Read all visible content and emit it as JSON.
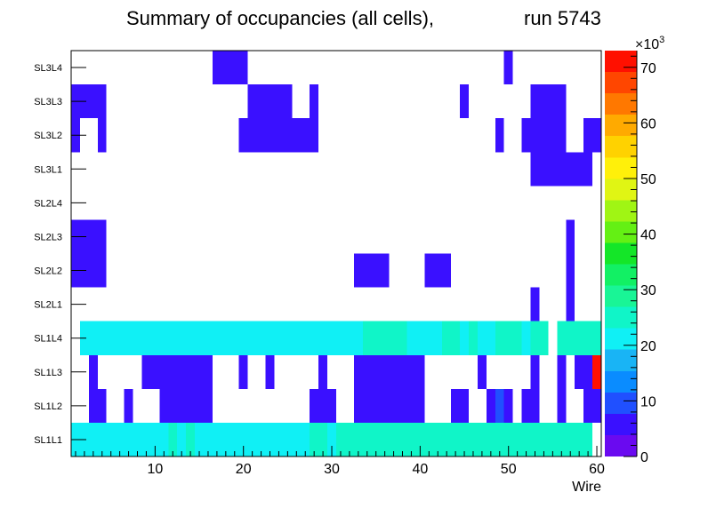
{
  "chart_data": {
    "type": "heatmap",
    "title": "Summary of occupancies (all cells),",
    "run_label": "run 5743",
    "xlabel": "Wire",
    "x_range": [
      0.5,
      60.5
    ],
    "x_ticks": [
      10,
      20,
      30,
      40,
      50,
      60
    ],
    "y_categories": [
      "SL1L1",
      "SL1L2",
      "SL1L3",
      "SL1L4",
      "SL2L1",
      "SL2L2",
      "SL2L3",
      "SL2L4",
      "SL3L1",
      "SL3L2",
      "SL3L3",
      "SL3L4"
    ],
    "z_range": [
      0,
      73000
    ],
    "z_ticks": [
      0,
      10,
      20,
      30,
      40,
      50,
      60,
      70
    ],
    "z_exponent_label": "×10",
    "z_exponent": "3",
    "palette": [
      "#6a0af0",
      "#3a10ff",
      "#2050ff",
      "#0a8cff",
      "#19b4f5",
      "#10f0f5",
      "#10f5c8",
      "#19f596",
      "#12f064",
      "#14e628",
      "#64f014",
      "#a0f514",
      "#e0f514",
      "#fff00a",
      "#ffd200",
      "#ffaa00",
      "#ff7800",
      "#ff4600",
      "#ff1000"
    ],
    "rows": {
      "SL1L1": [
        [
          1,
          3,
          21000
        ],
        [
          4,
          11,
          23000
        ],
        [
          12,
          12,
          25000
        ],
        [
          13,
          13,
          23000
        ],
        [
          14,
          14,
          25000
        ],
        [
          15,
          27,
          23000
        ],
        [
          28,
          29,
          25000
        ],
        [
          30,
          30,
          23000
        ],
        [
          31,
          59,
          25000
        ]
      ],
      "SL1L2": [
        [
          3,
          4,
          4000
        ],
        [
          7,
          7,
          4000
        ],
        [
          11,
          16,
          4000
        ],
        [
          28,
          30,
          4000
        ],
        [
          33,
          40,
          4000
        ],
        [
          44,
          45,
          4000
        ],
        [
          48,
          48,
          4000
        ],
        [
          49,
          49,
          8000
        ],
        [
          50,
          50,
          4000
        ],
        [
          52,
          53,
          4000
        ],
        [
          56,
          56,
          4000
        ],
        [
          59,
          60,
          4000
        ]
      ],
      "SL1L3": [
        [
          3,
          3,
          4000
        ],
        [
          9,
          16,
          4000
        ],
        [
          20,
          20,
          4000
        ],
        [
          23,
          23,
          4000
        ],
        [
          29,
          29,
          4000
        ],
        [
          33,
          40,
          4000
        ],
        [
          47,
          47,
          4000
        ],
        [
          53,
          53,
          4000
        ],
        [
          56,
          56,
          4000
        ],
        [
          58,
          58,
          4000
        ],
        [
          59,
          59,
          4000
        ],
        [
          60,
          60,
          73000
        ]
      ],
      "SL1L4": [
        [
          2,
          9,
          21000
        ],
        [
          10,
          15,
          23000
        ],
        [
          16,
          17,
          21000
        ],
        [
          18,
          33,
          23000
        ],
        [
          34,
          38,
          25000
        ],
        [
          39,
          42,
          23000
        ],
        [
          43,
          44,
          25000
        ],
        [
          45,
          45,
          23000
        ],
        [
          46,
          46,
          25000
        ],
        [
          47,
          48,
          23000
        ],
        [
          49,
          51,
          25000
        ],
        [
          52,
          52,
          23000
        ],
        [
          53,
          54,
          25000
        ],
        [
          56,
          60,
          25000
        ]
      ],
      "SL2L1": [
        [
          53,
          53,
          4000
        ],
        [
          57,
          57,
          4000
        ]
      ],
      "SL2L2": [
        [
          1,
          4,
          4000
        ],
        [
          33,
          36,
          4000
        ],
        [
          41,
          43,
          4000
        ],
        [
          57,
          57,
          4000
        ]
      ],
      "SL2L3": [
        [
          1,
          4,
          4000
        ],
        [
          57,
          57,
          4000
        ]
      ],
      "SL2L4": [],
      "SL3L1": [
        [
          53,
          59,
          4000
        ]
      ],
      "SL3L2": [
        [
          1,
          1,
          4000
        ],
        [
          4,
          4,
          4000
        ],
        [
          20,
          28,
          4000
        ],
        [
          49,
          49,
          4000
        ],
        [
          52,
          56,
          4000
        ],
        [
          59,
          60,
          4000
        ]
      ],
      "SL3L3": [
        [
          1,
          4,
          4000
        ],
        [
          21,
          25,
          4000
        ],
        [
          28,
          28,
          4000
        ],
        [
          45,
          45,
          4000
        ],
        [
          53,
          56,
          4000
        ]
      ],
      "SL3L4": [
        [
          17,
          20,
          4000
        ],
        [
          50,
          50,
          4000
        ]
      ]
    }
  }
}
